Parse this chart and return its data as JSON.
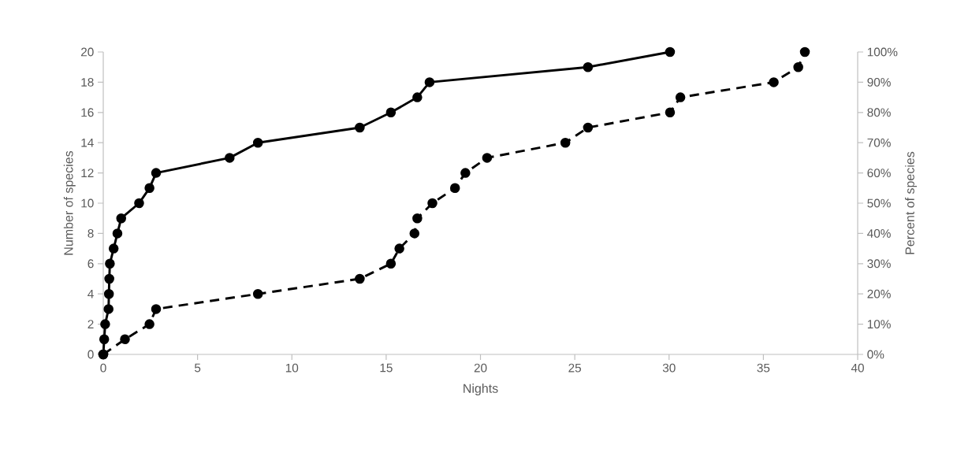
{
  "chart_data": {
    "type": "line",
    "xlabel": "Nights",
    "ylabel": "Number of species",
    "y2label": "Percent of species",
    "xlim": [
      0,
      40
    ],
    "xticks": [
      0,
      5,
      10,
      15,
      20,
      25,
      30,
      35,
      40
    ],
    "ylim": [
      0,
      20
    ],
    "yticks": [
      0,
      2,
      4,
      6,
      8,
      10,
      12,
      14,
      16,
      18,
      20
    ],
    "y2lim": [
      0,
      100
    ],
    "y2ticks": [
      {
        "value": 0,
        "label": "0%"
      },
      {
        "value": 10,
        "label": "10%"
      },
      {
        "value": 20,
        "label": "20%"
      },
      {
        "value": 30,
        "label": "30%"
      },
      {
        "value": 40,
        "label": "40%"
      },
      {
        "value": 50,
        "label": "50%"
      },
      {
        "value": 60,
        "label": "60%"
      },
      {
        "value": 70,
        "label": "70%"
      },
      {
        "value": 80,
        "label": "80%"
      },
      {
        "value": 90,
        "label": "90%"
      },
      {
        "value": 100,
        "label": "100%"
      }
    ],
    "marker": "circle",
    "series": [
      {
        "color": "#000000",
        "line_style": "solid",
        "x": [
          0,
          0.05,
          0.1,
          0.28,
          0.3,
          0.32,
          0.35,
          0.55,
          0.75,
          0.95,
          1.9,
          2.45,
          2.8,
          6.7,
          8.2,
          13.6,
          15.25,
          16.65,
          17.3,
          25.7,
          30.05
        ],
        "values": [
          0,
          1,
          2,
          3,
          4,
          5,
          6,
          7,
          8,
          9,
          10,
          11,
          12,
          13,
          14,
          15,
          16,
          17,
          18,
          19,
          20
        ]
      },
      {
        "color": "#000000",
        "line_style": "dashed",
        "axis": "y2",
        "x": [
          0,
          1.15,
          2.45,
          2.8,
          8.2,
          13.6,
          15.25,
          15.7,
          16.5,
          16.65,
          17.45,
          18.65,
          19.2,
          20.35,
          24.5,
          25.7,
          30.05,
          30.6,
          35.55,
          36.85,
          37.2
        ],
        "values": [
          0,
          5,
          10,
          15,
          20,
          25,
          30,
          35,
          40,
          45,
          50,
          55,
          60,
          65,
          70,
          75,
          80,
          85,
          90,
          95,
          100
        ]
      }
    ]
  }
}
